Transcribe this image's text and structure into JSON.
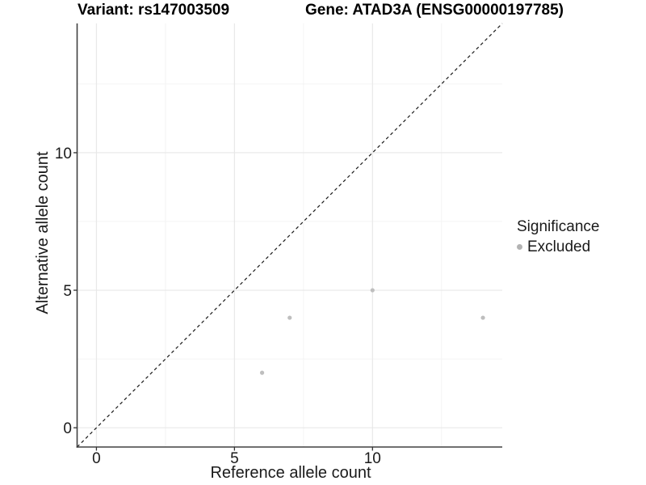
{
  "figure": {
    "title_left": "Variant: rs147003509",
    "title_right": "Gene: ATAD3A (ENSG00000197785)"
  },
  "chart_data": {
    "type": "scatter",
    "title": "Variant: rs147003509",
    "subtitle": "Gene: ATAD3A (ENSG00000197785)",
    "xlabel": "Reference allele count",
    "ylabel": "Alternative allele count",
    "xlim": [
      -0.7,
      14.7
    ],
    "ylim": [
      -0.7,
      14.7
    ],
    "x_major_ticks": [
      0,
      5,
      10
    ],
    "y_major_ticks": [
      0,
      5,
      10
    ],
    "x_minor_ticks": [
      2.5,
      7.5,
      12.5
    ],
    "y_minor_ticks": [
      2.5,
      7.5,
      12.5
    ],
    "grid": true,
    "legend_position": "right",
    "reference_line": {
      "kind": "identity y=x",
      "style": "dashed",
      "color": "#1a1a1a"
    },
    "series": [
      {
        "name": "Excluded",
        "color": "#bebebe",
        "points": [
          {
            "x": 6,
            "y": 2
          },
          {
            "x": 7,
            "y": 4
          },
          {
            "x": 10,
            "y": 5
          },
          {
            "x": 14,
            "y": 4
          }
        ]
      }
    ],
    "legend": {
      "title": "Significance",
      "items": [
        {
          "label": "Excluded",
          "color": "#b3b3b3"
        }
      ]
    }
  },
  "colors": {
    "background": "#ffffff",
    "grid_major": "#e8e8e8",
    "grid_minor": "#f4f4f4",
    "axis_line": "#404040",
    "tick_mark": "#333333",
    "tick_label": "#1a1a1a",
    "point": "#bebebe",
    "dashed_line": "#1a1a1a"
  }
}
